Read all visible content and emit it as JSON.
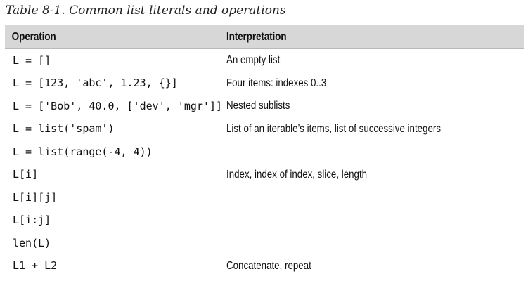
{
  "caption": "Table 8-1. Common list literals and operations",
  "table": {
    "headers": {
      "operation": "Operation",
      "interpretation": "Interpretation"
    },
    "rows": [
      {
        "operation": "L = []",
        "interpretation": "An empty list"
      },
      {
        "operation": "L = [123, 'abc', 1.23, {}]",
        "interpretation": "Four items: indexes 0..3"
      },
      {
        "operation": "L = ['Bob', 40.0, ['dev', 'mgr']]",
        "interpretation": "Nested sublists"
      },
      {
        "operation": "L = list('spam')",
        "interpretation": "List of an iterable’s items, list of successive integers"
      },
      {
        "operation": "L = list(range(-4, 4))",
        "interpretation": ""
      },
      {
        "operation": "L[i]",
        "interpretation": "Index, index of index, slice, length"
      },
      {
        "operation": "L[i][j]",
        "interpretation": ""
      },
      {
        "operation": "L[i:j]",
        "interpretation": ""
      },
      {
        "operation": "len(L)",
        "interpretation": ""
      },
      {
        "operation": "L1 + L2",
        "interpretation": "Concatenate, repeat"
      }
    ]
  }
}
